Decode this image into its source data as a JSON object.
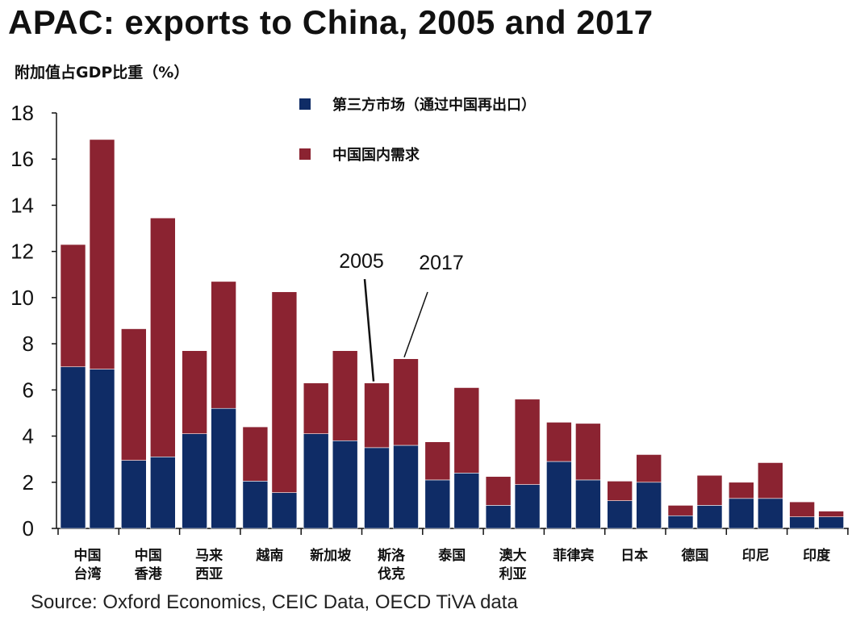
{
  "title": "APAC: exports to China, 2005 and 2017",
  "source": "Source: Oxford Economics, CEIC Data, OECD TiVA data",
  "colors": {
    "third_party": "#0f2c66",
    "domestic": "#8b2331",
    "axis": "#111111"
  },
  "chart_data": {
    "type": "bar",
    "stacked": true,
    "ylabel": "附加值占GDP比重（%）",
    "ylim": [
      0,
      18
    ],
    "yticks": [
      0,
      2,
      4,
      6,
      8,
      10,
      12,
      14,
      16,
      18
    ],
    "grid": false,
    "legend_position": "top-center",
    "years": [
      "2005",
      "2017"
    ],
    "categories": [
      {
        "label": [
          "中国",
          "台湾"
        ]
      },
      {
        "label": [
          "中国",
          "香港"
        ]
      },
      {
        "label": [
          "马来",
          "西亚"
        ]
      },
      {
        "label": [
          "越南"
        ]
      },
      {
        "label": [
          "新加坡"
        ]
      },
      {
        "label": [
          "斯洛",
          "伐克"
        ]
      },
      {
        "label": [
          "泰国"
        ]
      },
      {
        "label": [
          "澳大",
          "利亚"
        ]
      },
      {
        "label": [
          "菲律宾"
        ]
      },
      {
        "label": [
          "日本"
        ]
      },
      {
        "label": [
          "德国"
        ]
      },
      {
        "label": [
          "印尼"
        ]
      },
      {
        "label": [
          "印度"
        ]
      }
    ],
    "series": [
      {
        "name": "第三方市场（通过中国再出口）",
        "color": "#0f2c66",
        "values_2005": [
          7.0,
          2.95,
          4.1,
          2.05,
          4.1,
          3.5,
          2.1,
          1.0,
          2.9,
          1.2,
          0.55,
          1.3,
          0.5
        ],
        "values_2017": [
          6.9,
          3.1,
          5.2,
          1.55,
          3.8,
          3.6,
          2.4,
          1.9,
          2.1,
          2.0,
          1.0,
          1.3,
          0.5
        ]
      },
      {
        "name": "中国国内需求",
        "color": "#8b2331",
        "values_2005": [
          5.3,
          5.7,
          3.6,
          2.35,
          2.2,
          2.8,
          1.65,
          1.25,
          1.7,
          0.85,
          0.45,
          0.7,
          0.65
        ],
        "values_2017": [
          9.95,
          10.35,
          5.5,
          8.7,
          3.9,
          3.75,
          3.7,
          3.7,
          2.45,
          1.2,
          1.3,
          1.55,
          0.25
        ]
      }
    ],
    "annotations": [
      {
        "text": "2005"
      },
      {
        "text": "2017"
      }
    ]
  }
}
